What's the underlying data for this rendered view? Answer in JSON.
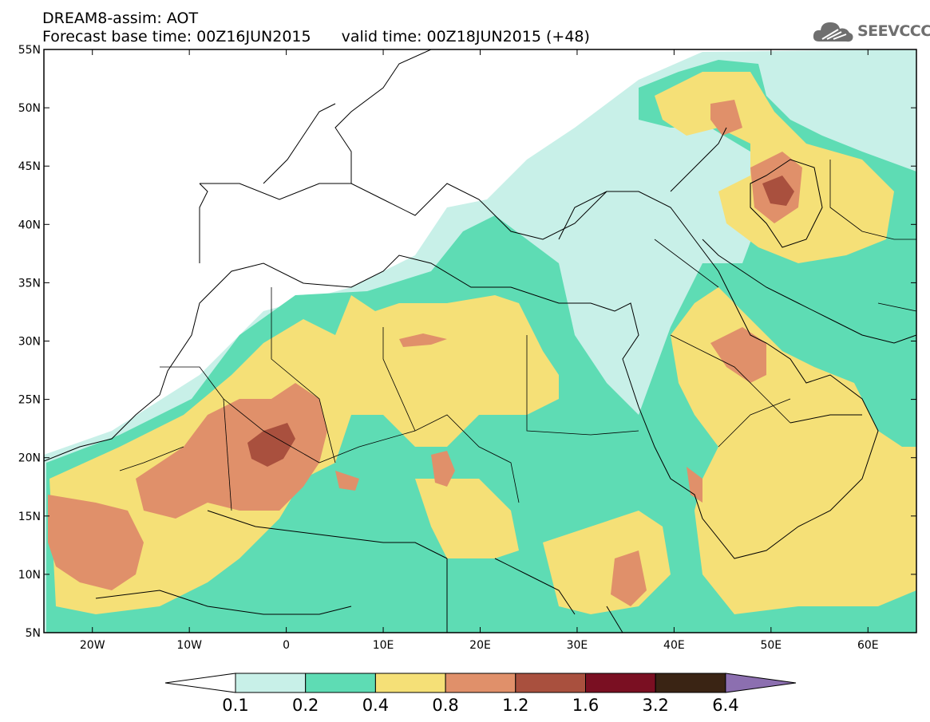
{
  "title": {
    "line1": "DREAM8-assim: AOT",
    "base": "Forecast base time: 00Z16JUN2015",
    "valid": "valid time: 00Z18JUN2015 (+48)"
  },
  "logo": {
    "text": "SEEVCCC",
    "icon": "cloud-icon"
  },
  "map": {
    "variable": "AOT",
    "lon_range": [
      -25,
      65
    ],
    "lat_range": [
      5,
      55
    ],
    "lat_ticks": [
      "55N",
      "50N",
      "45N",
      "40N",
      "35N",
      "30N",
      "25N",
      "20N",
      "15N",
      "10N",
      "5N"
    ],
    "lon_ticks": [
      "20W",
      "10W",
      "0",
      "10E",
      "20E",
      "30E",
      "40E",
      "50E",
      "60E"
    ]
  },
  "colorbar": {
    "labels": [
      "0.1",
      "0.2",
      "0.4",
      "0.8",
      "1.2",
      "1.6",
      "3.2",
      "6.4"
    ],
    "colors": [
      "#ffffff",
      "#c8f0e8",
      "#5edcb4",
      "#f5e077",
      "#e0906a",
      "#a9503e",
      "#7a0f22",
      "#3a2414",
      "#8c6fb0"
    ]
  }
}
